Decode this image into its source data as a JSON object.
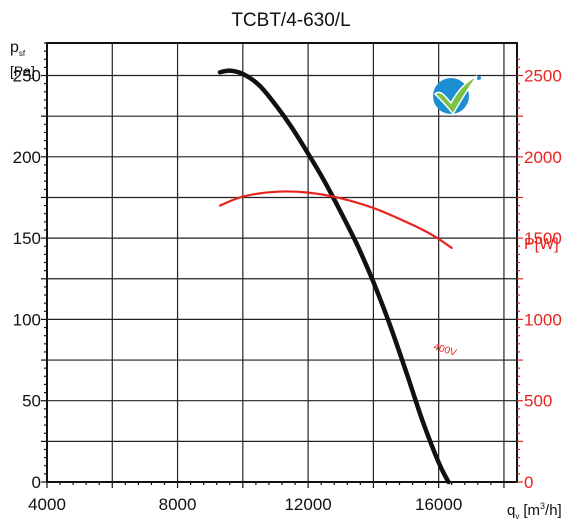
{
  "chart_data": {
    "type": "line",
    "title": "TCBT/4-630/L",
    "ylabel_main": "p",
    "ylabel_sub": "sf",
    "ylabel_unit": "[Pa]",
    "y2label": "P[W]",
    "xlabel_main": "q",
    "xlabel_sub": "v",
    "xlabel_unit": "[m",
    "xlabel_sup": "3",
    "xlabel_unit_end": "/h]",
    "xlim": [
      4000,
      18400
    ],
    "ylim": [
      0,
      270
    ],
    "y2lim": [
      0,
      2700
    ],
    "x_ticks": [
      4000,
      8000,
      12000,
      16000
    ],
    "y_ticks": [
      0,
      50,
      100,
      150,
      200,
      250
    ],
    "y2_ticks": [
      0,
      500,
      1000,
      1500,
      2000,
      2500
    ],
    "grid": true,
    "colors": {
      "pressure": "#111111",
      "power": "#e8231e",
      "axis": "#111111",
      "grid": "#222222"
    },
    "series": [
      {
        "axis": "left",
        "x": [
          9300,
          9600,
          10000,
          10500,
          11000,
          11500,
          12000,
          12500,
          13000,
          13500,
          14000,
          14500,
          15000,
          15500,
          16000,
          16300
        ],
        "values": [
          252,
          253,
          251,
          244,
          232,
          218,
          202,
          185,
          166,
          146,
          123,
          97,
          68,
          38,
          12,
          0
        ]
      },
      {
        "axis": "right",
        "label": "400V",
        "x": [
          9300,
          10000,
          11000,
          12000,
          13000,
          14000,
          15000,
          15800,
          16400
        ],
        "values": [
          1700,
          1755,
          1785,
          1780,
          1745,
          1685,
          1600,
          1520,
          1440
        ]
      }
    ]
  },
  "logo": {
    "icon": "checkmark-seal-icon",
    "colors": [
      "#1b8fd2",
      "#7cc242"
    ]
  }
}
